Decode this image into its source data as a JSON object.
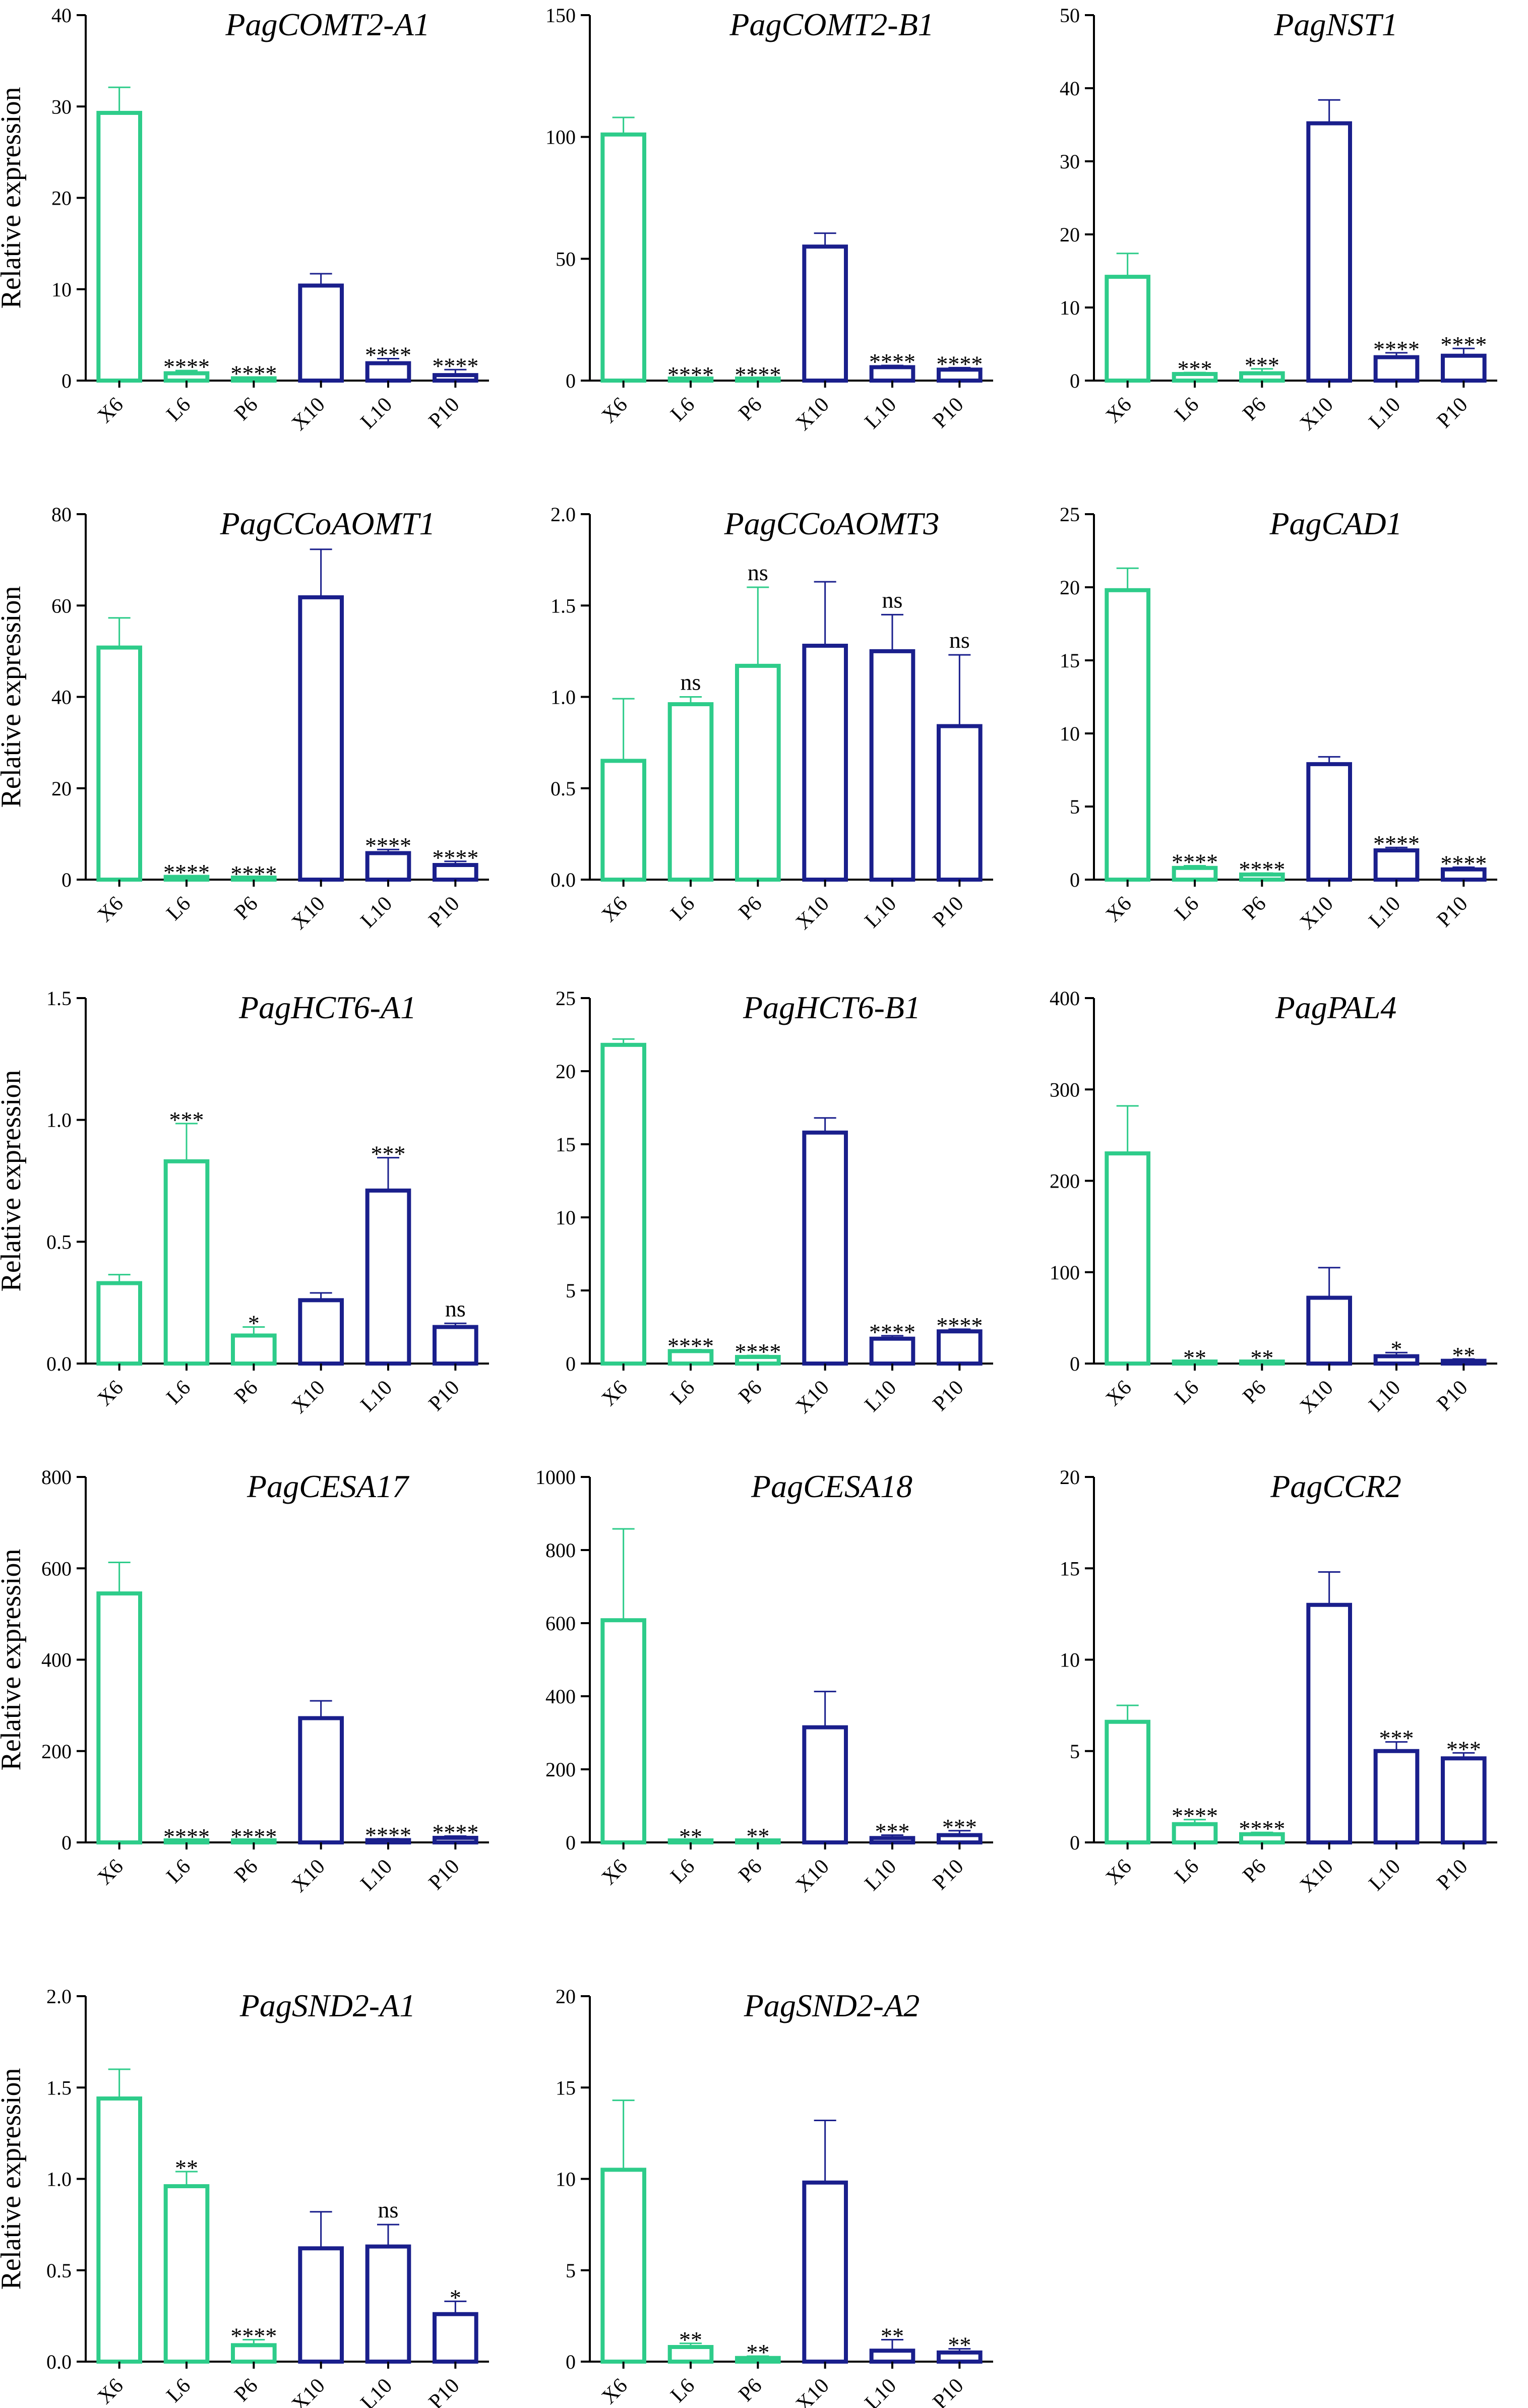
{
  "chart_data": [
    {
      "type": "bar",
      "title": "PagCOMT2-A1",
      "ylabel": "Relative expression",
      "ylim": [
        0,
        40
      ],
      "yticks": [
        0,
        10,
        20,
        30,
        40
      ],
      "categories": [
        "X6",
        "L6",
        "P6",
        "X10",
        "L10",
        "P10"
      ],
      "values": [
        29.3,
        0.8,
        0.25,
        10.4,
        1.9,
        0.6
      ],
      "errors": [
        2.8,
        0.3,
        0.1,
        1.3,
        0.5,
        0.6
      ],
      "significance": [
        "",
        "****",
        "****",
        "",
        "****",
        "****"
      ]
    },
    {
      "type": "bar",
      "title": "PagCOMT2-B1",
      "ylabel": "",
      "ylim": [
        0,
        150
      ],
      "yticks": [
        0,
        50,
        100,
        150
      ],
      "categories": [
        "X6",
        "L6",
        "P6",
        "X10",
        "L10",
        "P10"
      ],
      "values": [
        101,
        0.5,
        0.2,
        55,
        5.5,
        4.5
      ],
      "errors": [
        7,
        0.3,
        0.1,
        5.5,
        0.7,
        0.8
      ],
      "significance": [
        "",
        "****",
        "****",
        "",
        "****",
        "****"
      ]
    },
    {
      "type": "bar",
      "title": "PagNST1",
      "ylabel": "",
      "ylim": [
        0,
        50
      ],
      "yticks": [
        0,
        10,
        20,
        30,
        40,
        50
      ],
      "categories": [
        "X6",
        "L6",
        "P6",
        "X10",
        "L10",
        "P10"
      ],
      "values": [
        14.2,
        0.9,
        1.0,
        35.2,
        3.2,
        3.4
      ],
      "errors": [
        3.2,
        0.2,
        0.6,
        3.2,
        0.6,
        1.0
      ],
      "significance": [
        "",
        "***",
        "***",
        "",
        "****",
        "****"
      ]
    },
    {
      "type": "bar",
      "title": "PagCCoAOMT1",
      "ylabel": "Relative expression",
      "ylim": [
        0,
        80
      ],
      "yticks": [
        0,
        20,
        40,
        60,
        80
      ],
      "categories": [
        "X6",
        "L6",
        "P6",
        "X10",
        "L10",
        "P10"
      ],
      "values": [
        50.8,
        0.6,
        0.3,
        61.8,
        5.8,
        3.2
      ],
      "errors": [
        6.5,
        0.2,
        0.1,
        10.5,
        0.8,
        0.8
      ],
      "significance": [
        "",
        "****",
        "****",
        "",
        "****",
        "****"
      ]
    },
    {
      "type": "bar",
      "title": "PagCCoAOMT3",
      "ylabel": "",
      "ylim": [
        0,
        2.0
      ],
      "yticks": [
        "0.0",
        "0.5",
        "1.0",
        "1.5",
        "2.0"
      ],
      "categories": [
        "X6",
        "L6",
        "P6",
        "X10",
        "L10",
        "P10"
      ],
      "values": [
        0.65,
        0.96,
        1.17,
        1.28,
        1.25,
        0.84
      ],
      "errors": [
        0.34,
        0.04,
        0.43,
        0.35,
        0.2,
        0.39
      ],
      "significance": [
        "",
        "ns",
        "ns",
        "",
        "ns",
        "ns"
      ]
    },
    {
      "type": "bar",
      "title": "PagCAD1",
      "ylabel": "",
      "ylim": [
        0,
        25
      ],
      "yticks": [
        0,
        5,
        10,
        15,
        20,
        25
      ],
      "categories": [
        "X6",
        "L6",
        "P6",
        "X10",
        "L10",
        "P10"
      ],
      "values": [
        19.8,
        0.8,
        0.35,
        7.9,
        2.0,
        0.7
      ],
      "errors": [
        1.5,
        0.15,
        0.1,
        0.5,
        0.2,
        0.15
      ],
      "significance": [
        "",
        "****",
        "****",
        "",
        "****",
        "****"
      ]
    },
    {
      "type": "bar",
      "title": "PagHCT6-A1",
      "ylabel": "Relative expression",
      "ylim": [
        0,
        1.5
      ],
      "yticks": [
        "0.0",
        "0.5",
        "1.0",
        "1.5"
      ],
      "categories": [
        "X6",
        "L6",
        "P6",
        "X10",
        "L10",
        "P10"
      ],
      "values": [
        0.33,
        0.83,
        0.115,
        0.26,
        0.71,
        0.15
      ],
      "errors": [
        0.035,
        0.155,
        0.035,
        0.03,
        0.135,
        0.015
      ],
      "significance": [
        "",
        "***",
        "*",
        "",
        "***",
        "ns"
      ]
    },
    {
      "type": "bar",
      "title": "PagHCT6-B1",
      "ylabel": "",
      "ylim": [
        0,
        25
      ],
      "yticks": [
        0,
        5,
        10,
        15,
        20,
        25
      ],
      "categories": [
        "X6",
        "L6",
        "P6",
        "X10",
        "L10",
        "P10"
      ],
      "values": [
        21.8,
        0.85,
        0.45,
        15.8,
        1.7,
        2.2
      ],
      "errors": [
        0.4,
        0.1,
        0.1,
        1.0,
        0.2,
        0.15
      ],
      "significance": [
        "",
        "****",
        "****",
        "",
        "****",
        "****"
      ]
    },
    {
      "type": "bar",
      "title": "PagPAL4",
      "ylabel": "",
      "ylim": [
        0,
        400
      ],
      "yticks": [
        0,
        100,
        200,
        300,
        400
      ],
      "categories": [
        "X6",
        "L6",
        "P6",
        "X10",
        "L10",
        "P10"
      ],
      "values": [
        230,
        1,
        1,
        72,
        8,
        3
      ],
      "errors": [
        52,
        0.5,
        0.5,
        33,
        4,
        2
      ],
      "significance": [
        "",
        "**",
        "**",
        "",
        "*",
        "**"
      ]
    },
    {
      "type": "bar",
      "title": "PagCESA17",
      "ylabel": "Relative expression",
      "ylim": [
        0,
        800
      ],
      "yticks": [
        0,
        200,
        400,
        600,
        800
      ],
      "categories": [
        "X6",
        "L6",
        "P6",
        "X10",
        "L10",
        "P10"
      ],
      "values": [
        545,
        1,
        2,
        272,
        5,
        10
      ],
      "errors": [
        68,
        0.5,
        1,
        38,
        3,
        4
      ],
      "significance": [
        "",
        "****",
        "****",
        "",
        "****",
        "****"
      ]
    },
    {
      "type": "bar",
      "title": "PagCESA18",
      "ylabel": "",
      "ylim": [
        0,
        1000
      ],
      "yticks": [
        0,
        200,
        400,
        600,
        800,
        1000
      ],
      "categories": [
        "X6",
        "L6",
        "P6",
        "X10",
        "L10",
        "P10"
      ],
      "values": [
        608,
        1,
        5,
        315,
        12,
        20
      ],
      "errors": [
        250,
        0.5,
        2,
        98,
        8,
        12
      ],
      "significance": [
        "",
        "**",
        "**",
        "",
        "***",
        "***"
      ]
    },
    {
      "type": "bar",
      "title": "PagCCR2",
      "ylabel": "",
      "ylim": [
        0,
        20
      ],
      "yticks": [
        0,
        5,
        10,
        15,
        20
      ],
      "categories": [
        "X6",
        "L6",
        "P6",
        "X10",
        "L10",
        "P10"
      ],
      "values": [
        6.6,
        1.0,
        0.45,
        13.0,
        5.0,
        4.6
      ],
      "errors": [
        0.9,
        0.25,
        0.1,
        1.8,
        0.5,
        0.3
      ],
      "significance": [
        "",
        "****",
        "****",
        "",
        "***",
        "***"
      ]
    },
    {
      "type": "bar",
      "title": "PagSND2-A1",
      "ylabel": "Relative expression",
      "ylim": [
        0,
        2.0
      ],
      "yticks": [
        "0.0",
        "0.5",
        "1.0",
        "1.5",
        "2.0"
      ],
      "categories": [
        "X6",
        "L6",
        "P6",
        "X10",
        "L10",
        "P10"
      ],
      "values": [
        1.44,
        0.96,
        0.09,
        0.62,
        0.63,
        0.26
      ],
      "errors": [
        0.16,
        0.08,
        0.03,
        0.2,
        0.12,
        0.07
      ],
      "significance": [
        "",
        "**",
        "****",
        "",
        "ns",
        "*"
      ]
    },
    {
      "type": "bar",
      "title": "PagSND2-A2",
      "ylabel": "",
      "ylim": [
        0,
        20
      ],
      "yticks": [
        0,
        5,
        10,
        15,
        20
      ],
      "categories": [
        "X6",
        "L6",
        "P6",
        "X10",
        "L10",
        "P10"
      ],
      "values": [
        10.5,
        0.8,
        0.2,
        9.8,
        0.6,
        0.5
      ],
      "errors": [
        3.8,
        0.2,
        0.1,
        3.4,
        0.6,
        0.2
      ],
      "significance": [
        "",
        "**",
        "**",
        "",
        "**",
        "**"
      ]
    }
  ],
  "colors": {
    "group_6": "#2ecc8a",
    "group_10": "#1a1f8c",
    "axis": "#000000"
  }
}
